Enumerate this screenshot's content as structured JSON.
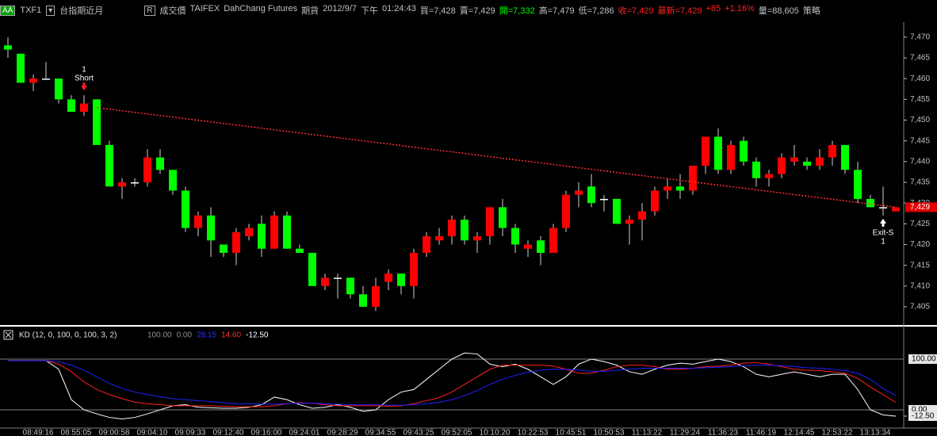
{
  "header": {
    "symbol_box": "AA",
    "symbol": "TXF1",
    "contract": "台指期近月",
    "r_box": "R",
    "items": [
      {
        "text": "成交價",
        "color": "#c0c0c0"
      },
      {
        "text": "TAIFEX",
        "color": "#c0c0c0"
      },
      {
        "text": "DahChang Futures",
        "color": "#c0c0c0"
      },
      {
        "text": "期貨",
        "color": "#c0c0c0"
      },
      {
        "text": "2012/9/7",
        "color": "#c0c0c0"
      },
      {
        "text": "下午",
        "color": "#c0c0c0"
      },
      {
        "text": "01:24:43",
        "color": "#c0c0c0"
      },
      {
        "text": "買=7,428",
        "color": "#c0c0c0"
      },
      {
        "text": "賣=7,429",
        "color": "#c0c0c0"
      },
      {
        "text": "開=7,332",
        "color": "#00ff00"
      },
      {
        "text": "高=7,479",
        "color": "#c0c0c0"
      },
      {
        "text": "低=7,286",
        "color": "#c0c0c0"
      },
      {
        "text": "收=7,429",
        "color": "#ff2020"
      },
      {
        "text": "最新=7,429",
        "color": "#ff2020"
      },
      {
        "text": "+85",
        "color": "#ff2020"
      },
      {
        "text": "+1.16%",
        "color": "#ff2020"
      },
      {
        "text": "量=88,605",
        "color": "#c0c0c0"
      },
      {
        "text": "策略",
        "color": "#c0c0c0"
      }
    ]
  },
  "chart_data": [
    {
      "type": "candlestick",
      "up_color": "#ff0000",
      "down_color": "#00ff00",
      "open": [
        7468,
        7466,
        7459,
        7460,
        7460,
        7455,
        7452,
        7455,
        7444,
        7434,
        7435,
        7435,
        7441,
        7438,
        7433,
        7424,
        7427,
        7420,
        7418,
        7422,
        7425,
        7419,
        7427,
        7419,
        7418,
        7410,
        7412,
        7412,
        7408,
        7405,
        7411,
        7413,
        7410,
        7418,
        7421,
        7422,
        7426,
        7421,
        7422,
        7429,
        7424,
        7419,
        7421,
        7418,
        7424,
        7432,
        7434,
        7431,
        7431,
        7425,
        7426,
        7428,
        7433,
        7434,
        7433,
        7439,
        7446,
        7438,
        7445,
        7440,
        7436,
        7437,
        7440,
        7440,
        7439,
        7441,
        7444,
        7438,
        7431,
        7429,
        7428
      ],
      "high": [
        7470,
        7466,
        7461,
        7464,
        7460,
        7456,
        7456,
        7455,
        7445,
        7436,
        7436,
        7443,
        7443,
        7438,
        7434,
        7428,
        7429,
        7420,
        7424,
        7425,
        7427,
        7428,
        7428,
        7420,
        7418,
        7413,
        7413,
        7412,
        7410,
        7412,
        7414,
        7413,
        7419,
        7423,
        7424,
        7427,
        7427,
        7423,
        7429,
        7431,
        7425,
        7421,
        7422,
        7425,
        7433,
        7435,
        7437,
        7432,
        7431,
        7427,
        7430,
        7434,
        7436,
        7437,
        7439,
        7446,
        7448,
        7445,
        7446,
        7441,
        7438,
        7442,
        7444,
        7441,
        7443,
        7445,
        7444,
        7440,
        7432,
        7434,
        7429
      ],
      "low": [
        7465,
        7459,
        7457,
        7460,
        7454,
        7452,
        7451,
        7444,
        7434,
        7431,
        7434,
        7434,
        7437,
        7432,
        7423,
        7422,
        7417,
        7417,
        7415,
        7421,
        7417,
        7419,
        7419,
        7418,
        7410,
        7409,
        7407,
        7407,
        7405,
        7404,
        7409,
        7408,
        7407,
        7417,
        7420,
        7420,
        7420,
        7418,
        7420,
        7422,
        7418,
        7417,
        7415,
        7418,
        7423,
        7429,
        7429,
        7428,
        7425,
        7420,
        7421,
        7427,
        7431,
        7431,
        7432,
        7437,
        7437,
        7437,
        7439,
        7434,
        7434,
        7436,
        7439,
        7438,
        7438,
        7439,
        7437,
        7430,
        7429,
        7427,
        7428
      ],
      "close": [
        7467,
        7459,
        7460,
        7460,
        7455,
        7452,
        7454,
        7444,
        7434,
        7435,
        7435,
        7441,
        7438,
        7433,
        7424,
        7427,
        7421,
        7418,
        7423,
        7424,
        7419,
        7427,
        7419,
        7418,
        7410,
        7412,
        7412,
        7408,
        7405,
        7410,
        7413,
        7410,
        7418,
        7422,
        7422,
        7426,
        7421,
        7422,
        7429,
        7424,
        7420,
        7420,
        7418,
        7424,
        7432,
        7433,
        7430,
        7431,
        7425,
        7426,
        7428,
        7433,
        7434,
        7433,
        7439,
        7446,
        7438,
        7444,
        7440,
        7436,
        7437,
        7441,
        7441,
        7439,
        7441,
        7444,
        7438,
        7431,
        7429,
        7429,
        7429
      ],
      "ylim": [
        7400.6,
        7473.6
      ],
      "yticks": [
        {
          "value": 7405,
          "label": "7,405"
        },
        {
          "value": 7410,
          "label": "7,410"
        },
        {
          "value": 7415,
          "label": "7,415"
        },
        {
          "value": 7420,
          "label": "7,420"
        },
        {
          "value": 7425,
          "label": "7,425"
        },
        {
          "value": 7430,
          "label": "7,430"
        },
        {
          "value": 7435,
          "label": "7,435"
        },
        {
          "value": 7440,
          "label": "7,440"
        },
        {
          "value": 7445,
          "label": "7,445"
        },
        {
          "value": 7450,
          "label": "7,450"
        },
        {
          "value": 7455,
          "label": "7,455"
        },
        {
          "value": 7460,
          "label": "7,460"
        },
        {
          "value": 7465,
          "label": "7,465"
        },
        {
          "value": 7470,
          "label": "7,470"
        }
      ],
      "last_price": {
        "value": 7429,
        "label": "7,429"
      },
      "entry": {
        "count": "1",
        "label": "Short"
      },
      "exit": {
        "label": "Exit-S",
        "count": "1"
      },
      "trend_line": [
        7453,
        7429
      ],
      "trend_color": "#ff3030"
    },
    {
      "type": "line",
      "title": "KD (12, 0, 100, 0, 100, 3, 2)",
      "legend": [
        {
          "label": "100.00",
          "color": "#909090"
        },
        {
          "label": "0.00",
          "color": "#909090"
        },
        {
          "label": "28.15",
          "color": "#3030ff"
        },
        {
          "label": "14.60",
          "color": "#ff3030"
        },
        {
          "label": "-12.50",
          "color": "#ffffff"
        }
      ],
      "series": [
        {
          "color": "#ffffff",
          "values": [
            97,
            97,
            97,
            97,
            80,
            20,
            0,
            -8,
            -15,
            -18,
            -15,
            -8,
            0,
            8,
            10,
            5,
            4,
            3,
            3,
            5,
            10,
            25,
            20,
            10,
            3,
            5,
            10,
            5,
            -3,
            0,
            20,
            35,
            40,
            60,
            80,
            100,
            112,
            110,
            90,
            85,
            90,
            80,
            65,
            50,
            65,
            90,
            100,
            95,
            88,
            75,
            70,
            80,
            88,
            92,
            90,
            95,
            100,
            95,
            85,
            70,
            65,
            70,
            75,
            70,
            65,
            70,
            70,
            40,
            0,
            -10,
            -12.5
          ]
        },
        {
          "color": "#ff2020",
          "values": [
            97,
            97,
            97,
            97,
            90,
            75,
            55,
            40,
            30,
            22,
            15,
            12,
            10,
            8,
            8,
            8,
            8,
            7,
            6,
            6,
            6,
            8,
            12,
            14,
            13,
            10,
            8,
            8,
            8,
            8,
            7,
            8,
            12,
            18,
            24,
            35,
            50,
            65,
            80,
            88,
            88,
            88,
            88,
            86,
            80,
            72,
            72,
            78,
            85,
            88,
            88,
            85,
            80,
            80,
            82,
            85,
            86,
            88,
            92,
            93,
            90,
            85,
            80,
            78,
            77,
            75,
            72,
            62,
            45,
            30,
            14.6
          ]
        },
        {
          "color": "#2020ff",
          "values": [
            97,
            97,
            97,
            97,
            95,
            88,
            78,
            65,
            52,
            42,
            35,
            30,
            26,
            22,
            20,
            18,
            16,
            14,
            12,
            12,
            11,
            11,
            12,
            13,
            13,
            12,
            11,
            10,
            10,
            10,
            9,
            9,
            10,
            12,
            15,
            20,
            28,
            38,
            50,
            60,
            68,
            74,
            78,
            80,
            80,
            78,
            76,
            76,
            78,
            80,
            82,
            82,
            82,
            82,
            82,
            83,
            84,
            85,
            87,
            88,
            88,
            87,
            85,
            83,
            82,
            80,
            77,
            72,
            60,
            42,
            28.15
          ]
        }
      ],
      "ylim": [
        -36,
        164
      ],
      "yticks": [
        {
          "value": 100,
          "label": "100.00"
        },
        {
          "value": 0,
          "label": "0.00"
        },
        {
          "value": -12.5,
          "label": "-12.50"
        }
      ],
      "x_labels": [
        "08:49:16",
        "08:55:05",
        "09:00:58",
        "09:04:10",
        "09:09:33",
        "09:12:40",
        "09:16:00",
        "09:24:01",
        "09:28:29",
        "09:34:55",
        "09:43:25",
        "09:52:05",
        "10:10:20",
        "10:22:53",
        "10:45:51",
        "10:50:53",
        "11:13:22",
        "11:29:24",
        "11:36:23",
        "11:46:19",
        "12:14:45",
        "12:53:22",
        "13:13:34"
      ]
    }
  ]
}
